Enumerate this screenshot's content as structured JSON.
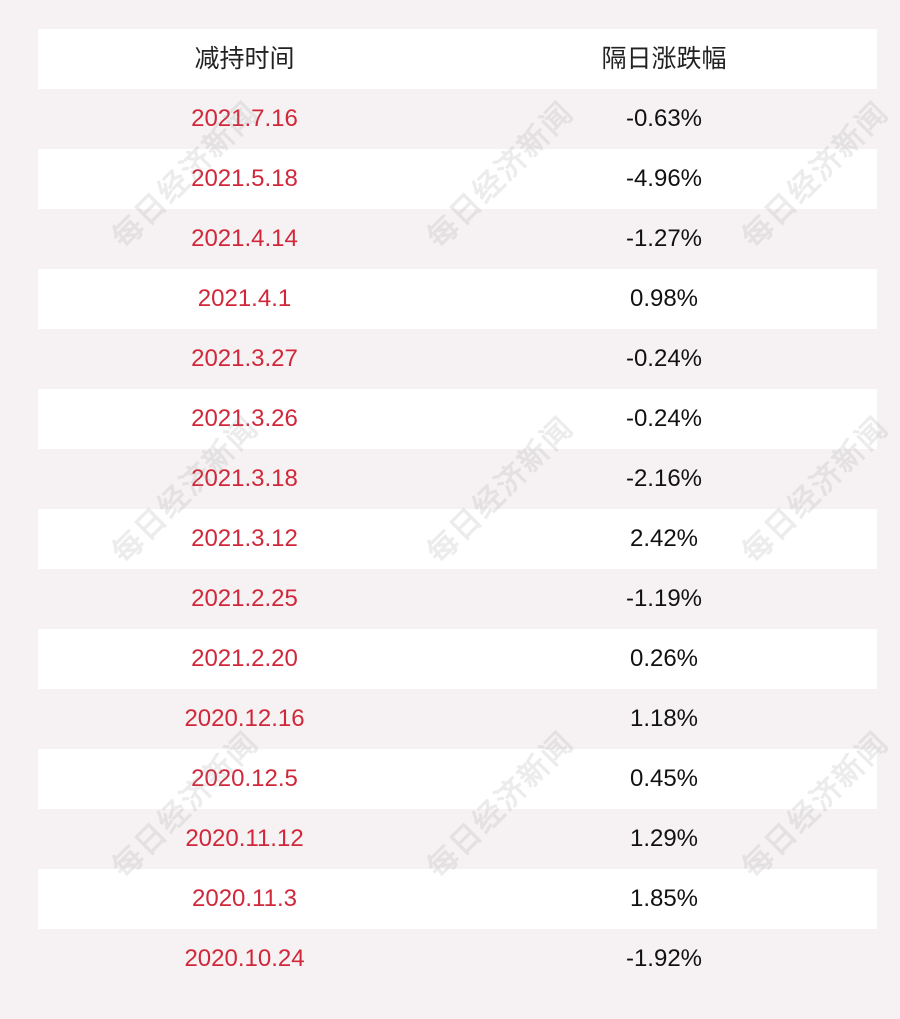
{
  "table": {
    "headers": [
      "减持时间",
      "隔日涨跌幅"
    ],
    "rows": [
      {
        "date": "2021.7.16",
        "change": "-0.63%"
      },
      {
        "date": "2021.5.18",
        "change": "-4.96%"
      },
      {
        "date": "2021.4.14",
        "change": "-1.27%"
      },
      {
        "date": "2021.4.1",
        "change": "0.98%"
      },
      {
        "date": "2021.3.27",
        "change": "-0.24%"
      },
      {
        "date": "2021.3.26",
        "change": "-0.24%"
      },
      {
        "date": "2021.3.18",
        "change": "-2.16%"
      },
      {
        "date": "2021.3.12",
        "change": "2.42%"
      },
      {
        "date": "2021.2.25",
        "change": "-1.19%"
      },
      {
        "date": "2021.2.20",
        "change": "0.26%"
      },
      {
        "date": "2020.12.16",
        "change": "1.18%"
      },
      {
        "date": "2020.12.5",
        "change": "0.45%"
      },
      {
        "date": "2020.11.12",
        "change": "1.29%"
      },
      {
        "date": "2020.11.3",
        "change": "1.85%"
      },
      {
        "date": "2020.10.24",
        "change": "-1.92%"
      }
    ]
  },
  "watermark": {
    "text": "每日经济新闻"
  },
  "colors": {
    "date_text": "#d0283a",
    "value_text": "#111111",
    "row_white": "#ffffff",
    "row_tint": "#f6f2f3"
  }
}
